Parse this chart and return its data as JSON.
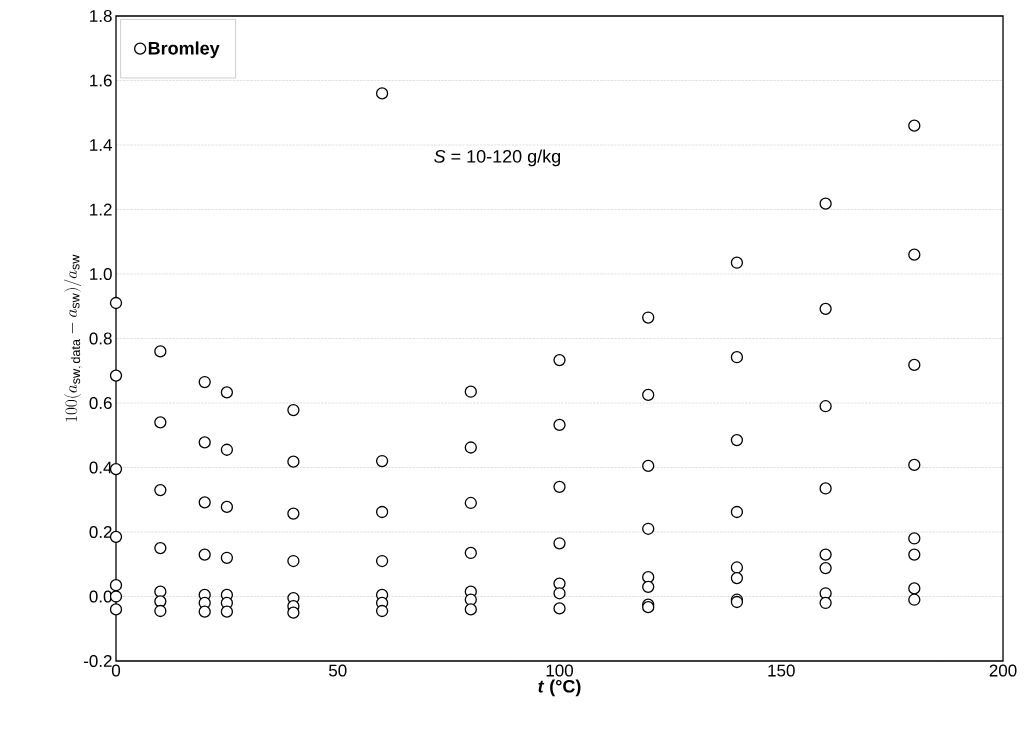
{
  "chart_data": {
    "type": "scatter",
    "xlabel": "*t* (°C)",
    "ylabel": "100(a_{\\mathrm{sw,\\,data}} - a_{\\mathrm{sw}})/a_{\\mathrm{sw}}",
    "annotations": [
      "*S* = 10-120 g/kg"
    ],
    "series": [
      {
        "name": "Bromley",
        "color": "#000000",
        "x": [
          0,
          0,
          0,
          0,
          0,
          0,
          0,
          10,
          10,
          10,
          10,
          10,
          10,
          10,
          20,
          20,
          20,
          20,
          20,
          20,
          20,
          25,
          25,
          25,
          25,
          25,
          25,
          25,
          40,
          40,
          40,
          40,
          40,
          40,
          40,
          60,
          60,
          60,
          60,
          60,
          60,
          60,
          80,
          80,
          80,
          80,
          80,
          80,
          80,
          100,
          100,
          100,
          100,
          100,
          100,
          100,
          120,
          120,
          120,
          120,
          120,
          120,
          120,
          120,
          140,
          140,
          140,
          140,
          140,
          140,
          140,
          140,
          160,
          160,
          160,
          160,
          160,
          160,
          160,
          160,
          180,
          180,
          180,
          180,
          180,
          180,
          180,
          180
        ],
        "values": [
          0.91,
          0.685,
          0.395,
          0.185,
          0.035,
          0.0,
          -0.04,
          0.76,
          0.54,
          0.33,
          0.15,
          0.015,
          -0.015,
          -0.045,
          0.665,
          0.478,
          0.292,
          0.13,
          0.005,
          -0.02,
          -0.047,
          0.633,
          0.455,
          0.278,
          0.12,
          0.005,
          -0.02,
          -0.047,
          0.578,
          0.418,
          0.257,
          0.11,
          -0.005,
          -0.03,
          -0.05,
          1.56,
          0.42,
          0.262,
          0.11,
          0.005,
          -0.02,
          -0.045,
          0.635,
          0.462,
          0.29,
          0.135,
          0.015,
          -0.01,
          -0.04,
          0.733,
          0.532,
          0.34,
          0.165,
          0.04,
          0.01,
          -0.037,
          0.865,
          0.625,
          0.405,
          0.21,
          0.06,
          0.03,
          -0.025,
          -0.033,
          1.035,
          0.742,
          0.485,
          0.262,
          0.09,
          0.057,
          -0.01,
          -0.017,
          1.218,
          0.892,
          0.59,
          0.335,
          0.13,
          0.088,
          0.01,
          -0.02,
          1.46,
          1.06,
          0.718,
          0.408,
          0.18,
          0.13,
          0.025,
          -0.01
        ]
      }
    ],
    "xlim": [
      0,
      200
    ],
    "xticks": [
      0,
      50,
      100,
      150,
      200
    ],
    "ylim": [
      -0.2,
      1.8
    ],
    "yticks": [
      {
        "value": -0.2,
        "label": "-0.2"
      },
      {
        "value": 0,
        "label": "0.0"
      },
      {
        "value": 0.2,
        "label": "0.2"
      },
      {
        "value": 0.4,
        "label": "0.4"
      },
      {
        "value": 0.6,
        "label": "0.6"
      },
      {
        "value": 0.8,
        "label": "0.8"
      },
      {
        "value": 1.0,
        "label": "1.0"
      },
      {
        "value": 1.2,
        "label": "1.2"
      },
      {
        "value": 1.4,
        "label": "1.4"
      },
      {
        "value": 1.6,
        "label": "1.6"
      },
      {
        "value": 1.8,
        "label": "1.8"
      }
    ],
    "grid": "y",
    "legend": "top left",
    "marker": "circle"
  }
}
